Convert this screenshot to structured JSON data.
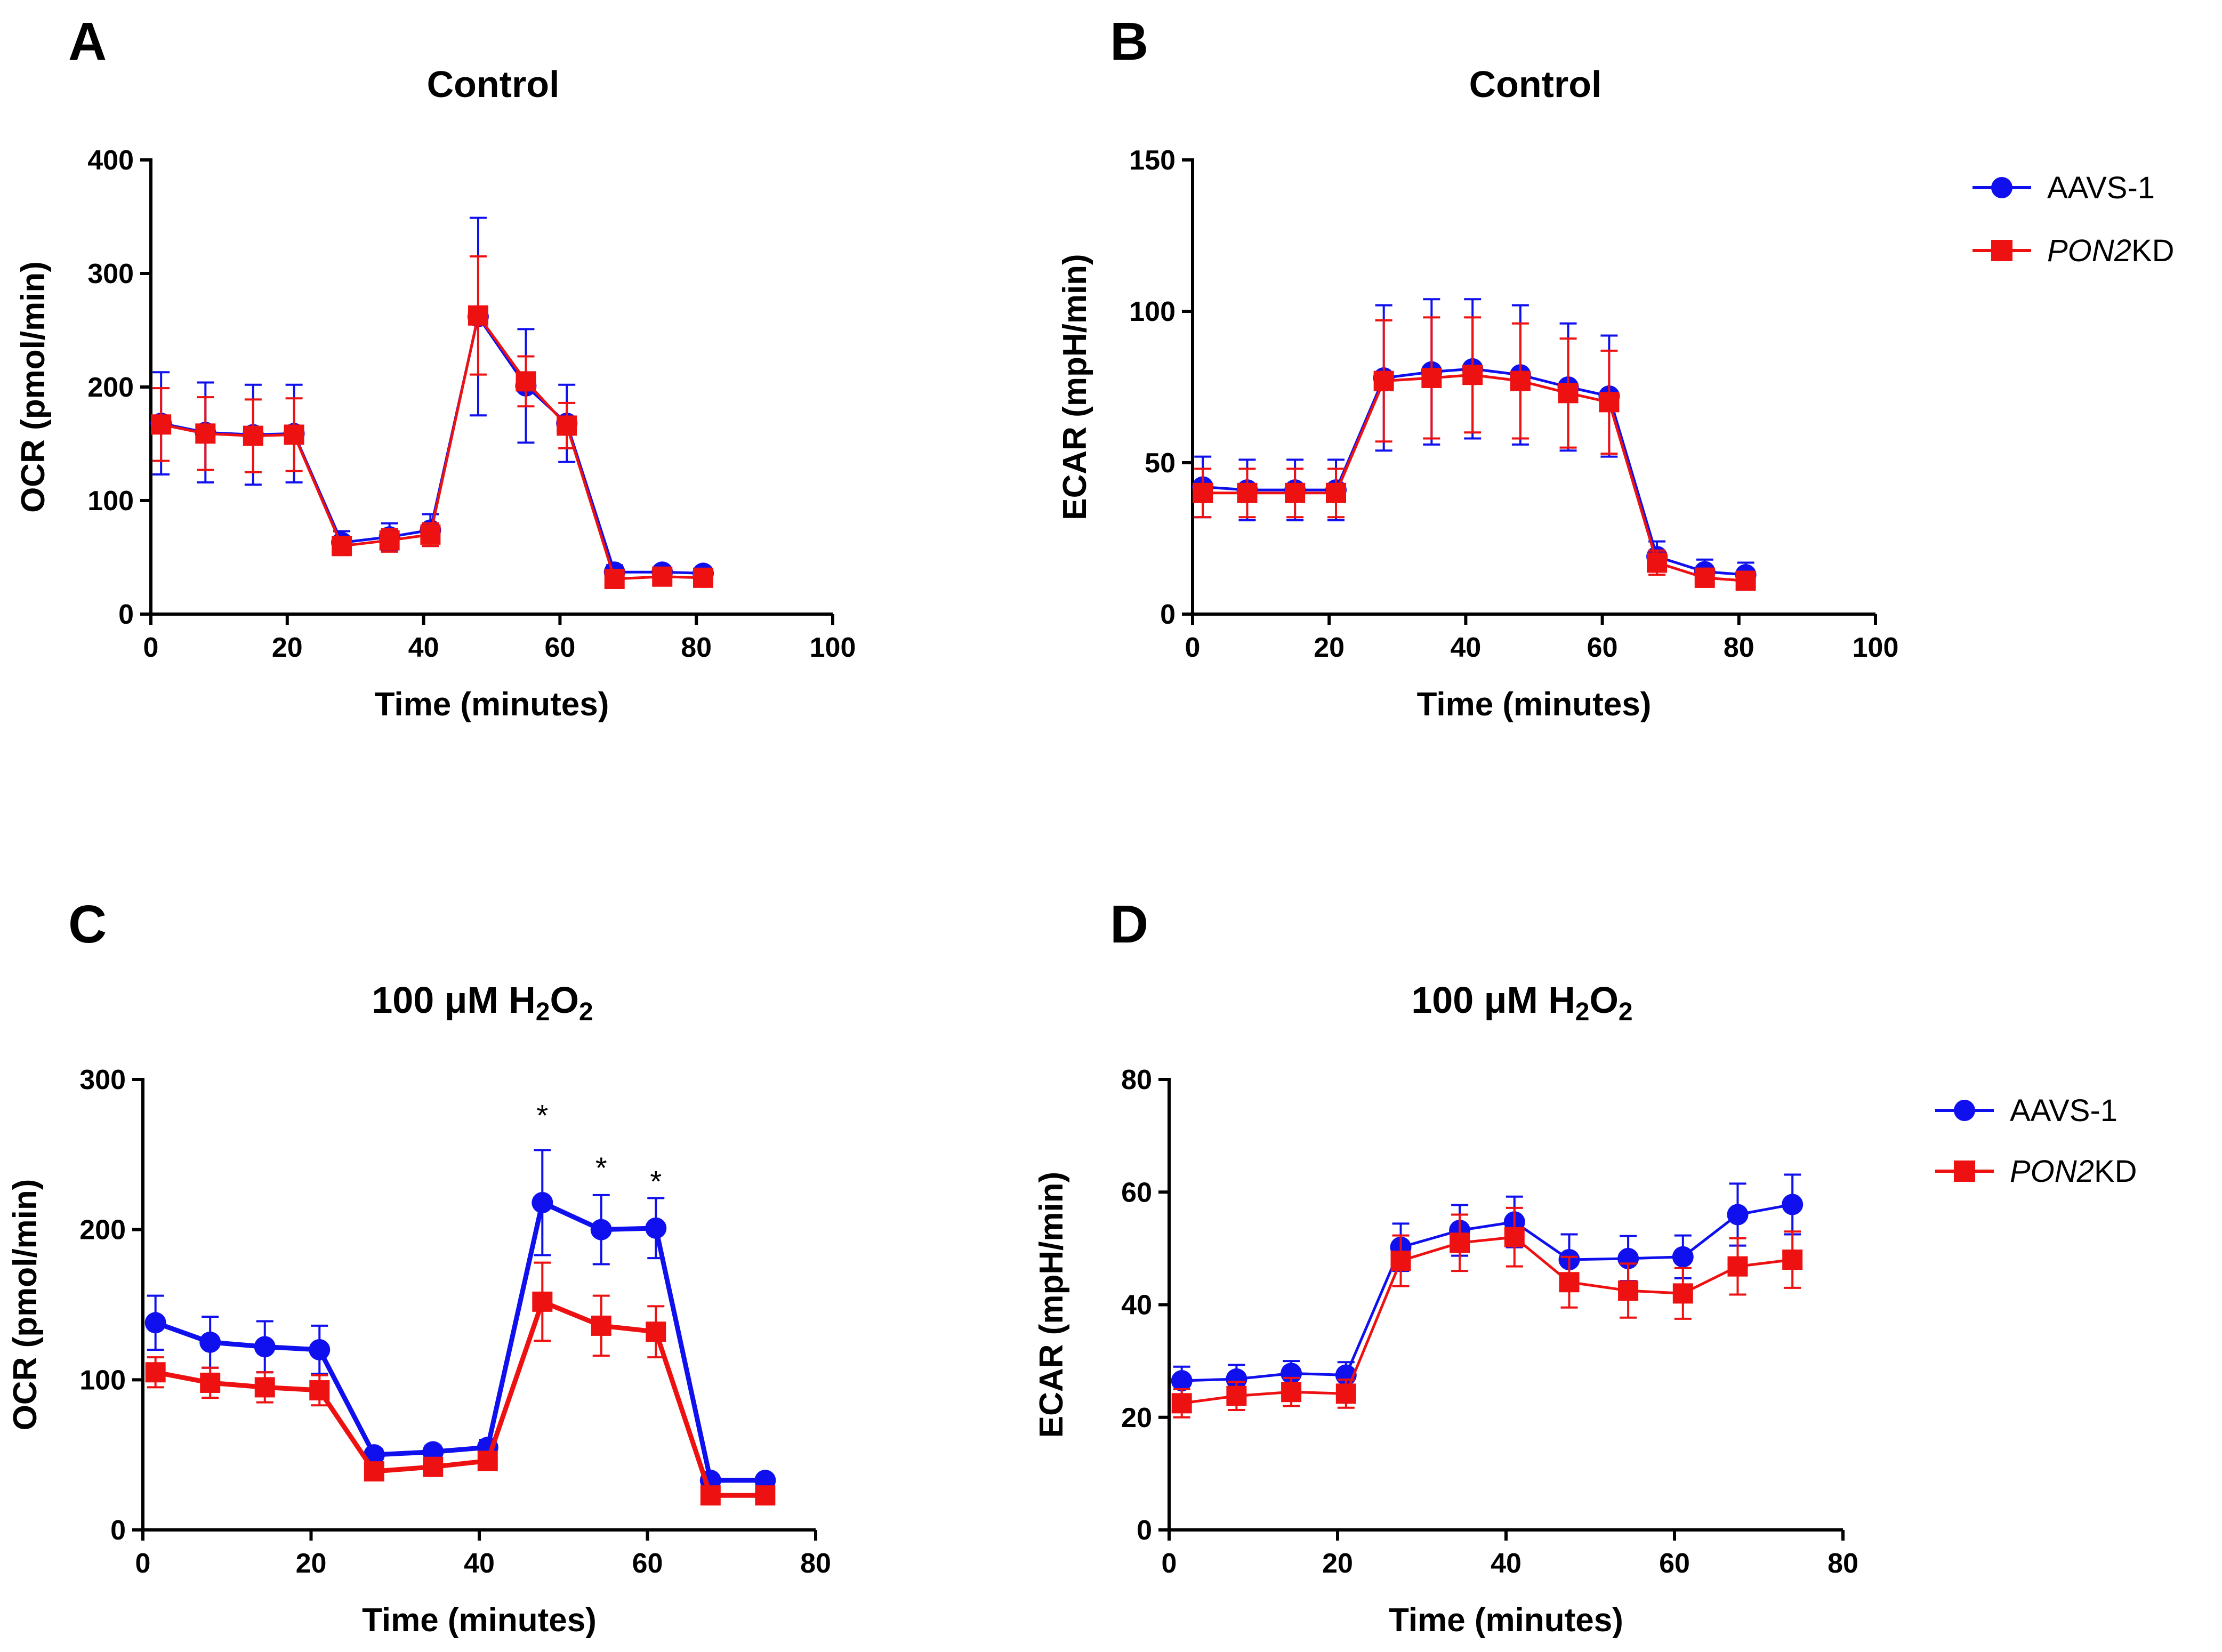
{
  "colors": {
    "aavs": "#1010ee",
    "pon2": "#ee1111",
    "axis": "#000000"
  },
  "legend": {
    "aavs_label": "AAVS-1",
    "pon2_italic": "PON2",
    "pon2_suffix": "KD"
  },
  "chart_data": [
    {
      "id": "A",
      "type": "line",
      "letter": "A",
      "title": "Control",
      "title_sub": "",
      "title_tail": "",
      "xlabel": "Time (minutes)",
      "ylabel": "OCR (pmol/min)",
      "xlim": [
        0,
        100
      ],
      "ylim": [
        0,
        400
      ],
      "xticks": [
        0,
        20,
        40,
        60,
        80,
        100
      ],
      "yticks": [
        0,
        100,
        200,
        300,
        400
      ],
      "x": [
        1.5,
        8,
        15,
        21,
        28,
        35,
        41,
        48,
        55,
        61,
        68,
        75,
        81
      ],
      "legend_visible": true,
      "series": [
        {
          "name": "AAVS-1",
          "marker": "circle",
          "values": [
            168,
            160,
            158,
            159,
            63,
            68,
            74,
            262,
            201,
            168,
            37,
            37,
            36
          ],
          "errors": [
            45,
            44,
            44,
            43,
            10,
            12,
            14,
            87,
            50,
            34,
            6,
            5,
            5
          ]
        },
        {
          "name": "PON2KD",
          "marker": "square",
          "values": [
            167,
            159,
            157,
            158,
            60,
            65,
            70,
            263,
            205,
            166,
            31,
            33,
            32
          ],
          "errors": [
            32,
            32,
            32,
            32,
            8,
            10,
            10,
            52,
            22,
            20,
            5,
            5,
            5
          ]
        }
      ],
      "annotations": []
    },
    {
      "id": "B",
      "type": "line",
      "letter": "B",
      "title": "Control",
      "title_sub": "",
      "title_tail": "",
      "xlabel": "Time (minutes)",
      "ylabel": "ECAR (mpH/min)",
      "xlim": [
        0,
        100
      ],
      "ylim": [
        0,
        150
      ],
      "xticks": [
        0,
        20,
        40,
        60,
        80,
        100
      ],
      "yticks": [
        0,
        50,
        100,
        150
      ],
      "x": [
        1.5,
        8,
        15,
        21,
        28,
        35,
        41,
        48,
        55,
        61,
        68,
        75,
        81
      ],
      "legend_visible": true,
      "series": [
        {
          "name": "AAVS-1",
          "marker": "circle",
          "values": [
            42,
            41,
            41,
            41,
            78,
            80,
            81,
            79,
            75,
            72,
            19,
            14,
            13
          ],
          "errors": [
            10,
            10,
            10,
            10,
            24,
            24,
            23,
            23,
            21,
            20,
            5,
            4,
            4
          ]
        },
        {
          "name": "PON2KD",
          "marker": "square",
          "values": [
            40,
            40,
            40,
            40,
            77,
            78,
            79,
            77,
            73,
            70,
            17,
            12,
            11
          ],
          "errors": [
            8,
            8,
            8,
            8,
            20,
            20,
            19,
            19,
            18,
            17,
            4,
            3,
            3
          ]
        }
      ],
      "annotations": []
    },
    {
      "id": "C",
      "type": "line",
      "letter": "C",
      "title": "100 μM H",
      "title_sub": "2",
      "title_tail": "O",
      "title_sub2": "2",
      "xlabel": "Time (minutes)",
      "ylabel": "OCR (pmol/min)",
      "xlim": [
        0,
        80
      ],
      "ylim": [
        0,
        300
      ],
      "xticks": [
        0,
        20,
        40,
        60,
        80
      ],
      "yticks": [
        0,
        100,
        200,
        300
      ],
      "x": [
        1.5,
        8,
        14.5,
        21,
        27.5,
        34.5,
        41,
        47.5,
        54.5,
        61,
        67.5,
        74
      ],
      "legend_visible": false,
      "series": [
        {
          "name": "AAVS-1",
          "marker": "circle",
          "values": [
            138,
            125,
            122,
            120,
            50,
            52,
            55,
            218,
            200,
            201,
            33,
            33
          ],
          "errors": [
            18,
            17,
            17,
            16,
            4,
            4,
            5,
            35,
            23,
            20,
            3,
            3
          ]
        },
        {
          "name": "PON2KD",
          "marker": "square",
          "values": [
            105,
            98,
            95,
            93,
            39,
            42,
            46,
            152,
            136,
            132,
            23,
            23
          ],
          "errors": [
            10,
            10,
            10,
            10,
            5,
            4,
            4,
            26,
            20,
            17,
            3,
            3
          ]
        }
      ],
      "annotations": [
        {
          "text": "*",
          "x": 47.5,
          "y": 280
        },
        {
          "text": "*",
          "x": 54.5,
          "y": 245
        },
        {
          "text": "*",
          "x": 61,
          "y": 236
        }
      ]
    },
    {
      "id": "D",
      "type": "line",
      "letter": "D",
      "title": "100 μM H",
      "title_sub": "2",
      "title_tail": "O",
      "title_sub2": "2",
      "xlabel": "Time (minutes)",
      "ylabel": "ECAR (mpH/min)",
      "xlim": [
        0,
        80
      ],
      "ylim": [
        0,
        80
      ],
      "xticks": [
        0,
        20,
        40,
        60,
        80
      ],
      "yticks": [
        0,
        20,
        40,
        60,
        80
      ],
      "x": [
        1.5,
        8,
        14.5,
        21,
        27.5,
        34.5,
        41,
        47.5,
        54.5,
        61,
        67.5,
        74
      ],
      "legend_visible": true,
      "series": [
        {
          "name": "AAVS-1",
          "marker": "circle",
          "values": [
            26.5,
            26.8,
            27.8,
            27.5,
            50.2,
            53.2,
            54.7,
            48,
            48.2,
            48.5,
            56,
            57.8
          ],
          "errors": [
            2.5,
            2.5,
            2.2,
            2.3,
            4.2,
            4.5,
            4.5,
            4.5,
            4,
            3.8,
            5.5,
            5.3
          ]
        },
        {
          "name": "PON2KD",
          "marker": "square",
          "values": [
            22.5,
            23.8,
            24.5,
            24.2,
            47.8,
            51,
            52,
            44,
            42.5,
            42,
            46.8,
            48
          ],
          "errors": [
            2.5,
            2.5,
            2.5,
            2.5,
            4.5,
            5,
            5.2,
            4.5,
            4.8,
            4.5,
            5,
            5
          ]
        }
      ],
      "annotations": []
    }
  ]
}
